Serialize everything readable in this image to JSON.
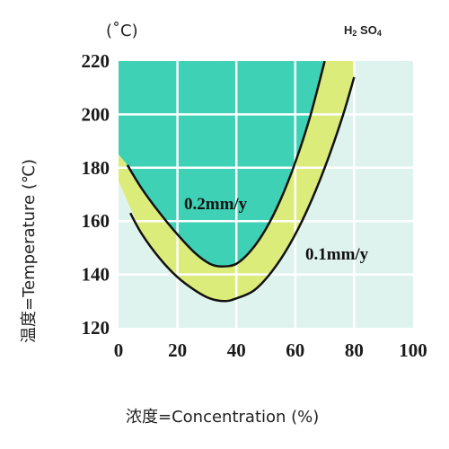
{
  "chart_data": {
    "type": "line",
    "title": "",
    "formula_label": {
      "base1": "H",
      "sub1": "2",
      "base2": " SO",
      "sub2": "4"
    },
    "unit_top": "(˚C)",
    "ylabel": "温度=Temperature (℃)",
    "xlabel": "浓度=Concentration (%)",
    "xlim": [
      0,
      100
    ],
    "ylim": [
      120,
      220
    ],
    "x_ticks": [
      "0",
      "20",
      "40",
      "60",
      "80",
      "100"
    ],
    "y_ticks": [
      "220",
      "200",
      "180",
      "160",
      "140",
      "120"
    ],
    "grid": true,
    "colors": {
      "background": "#ffffff",
      "plot_light": "#dff3ee",
      "zone_cyan": "#3fd1b6",
      "zone_yellow": "#dcec7a",
      "grid": "#ffffff",
      "curve": "#111111"
    },
    "series": [
      {
        "name": "0.2mm/y",
        "x": [
          3,
          8,
          14,
          20,
          26,
          31,
          35,
          40,
          45,
          50,
          55,
          60,
          65,
          70
        ],
        "y": [
          181,
          172,
          163,
          155,
          148,
          144,
          143,
          144,
          149,
          157,
          168,
          182,
          199,
          220
        ]
      },
      {
        "name": "0.1mm/y",
        "x": [
          4,
          8,
          14,
          20,
          26,
          31,
          36,
          40,
          46,
          52,
          58,
          64,
          70,
          76,
          80
        ],
        "y": [
          163,
          155,
          146,
          139,
          134,
          131,
          130,
          131,
          134,
          141,
          151,
          164,
          180,
          199,
          214
        ]
      }
    ],
    "annotations": [
      "0.2mm/y",
      "0.1mm/y"
    ]
  }
}
